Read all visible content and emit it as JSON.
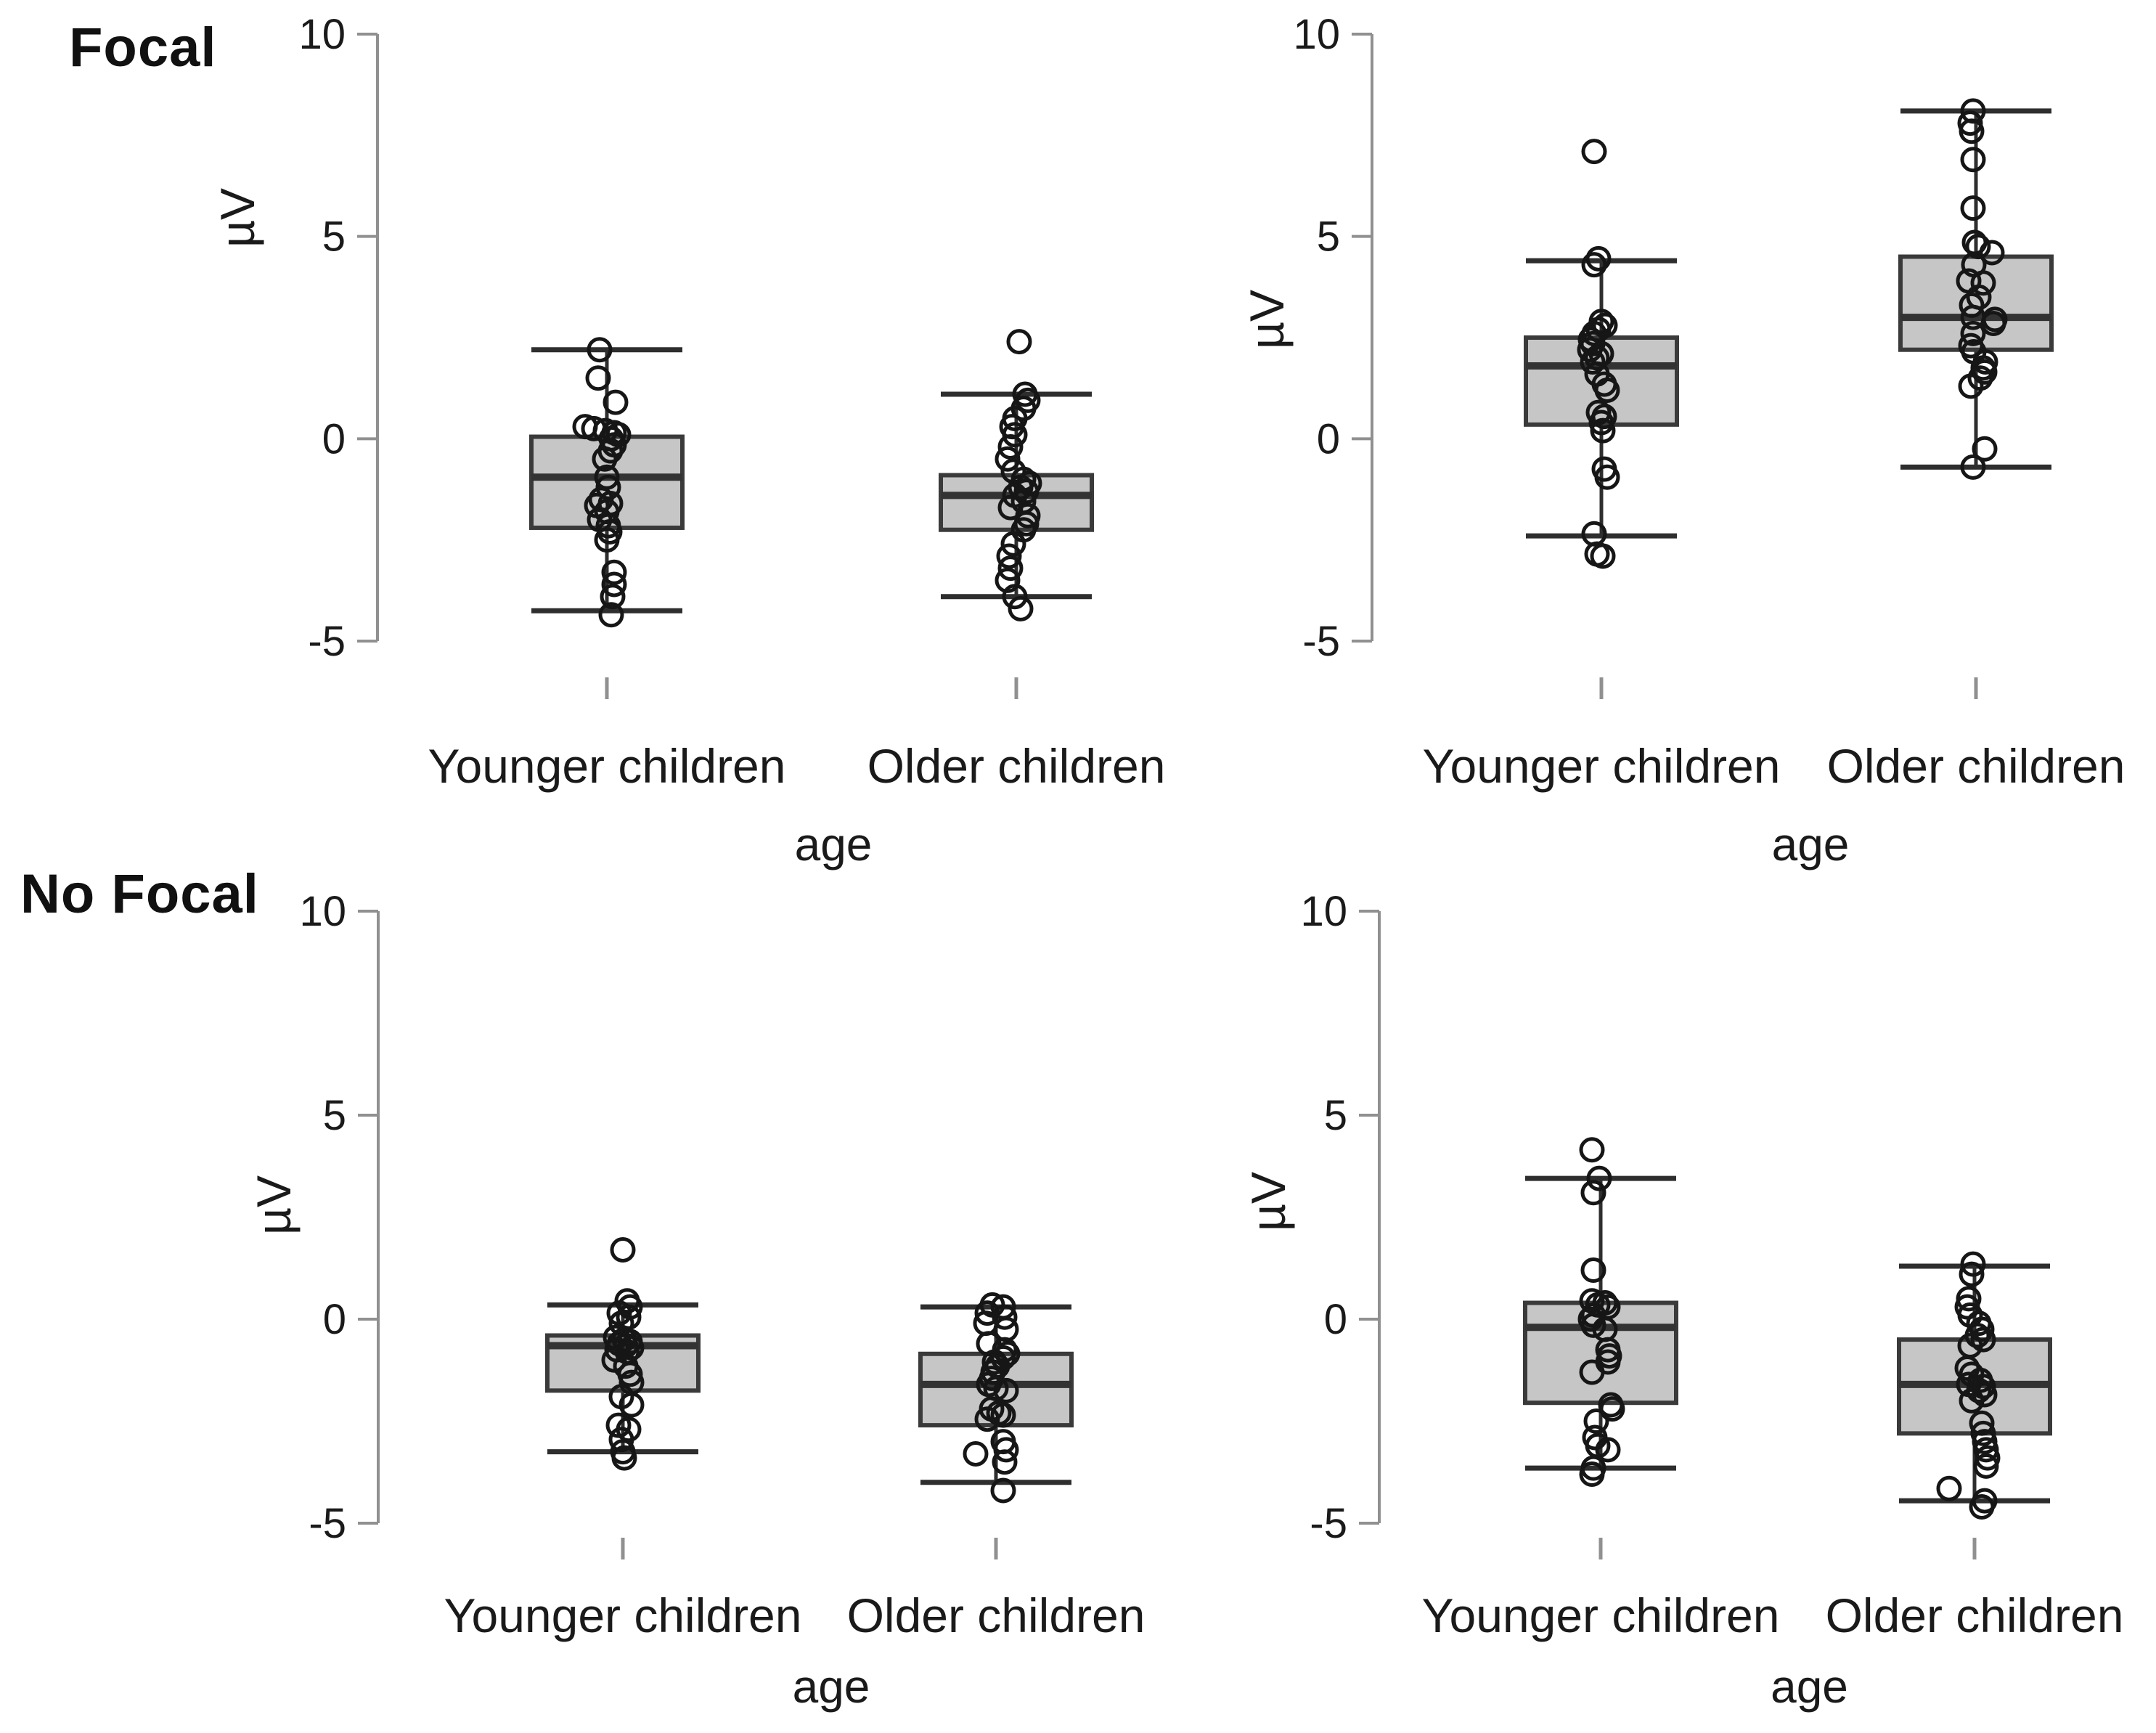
{
  "figure": {
    "row_titles": [
      "Focal",
      "No Focal"
    ],
    "y_axis_label": "µV",
    "x_axis_label": "age",
    "y_tick_labels": [
      "10",
      "5",
      "0",
      "-5"
    ],
    "categories": [
      "Younger children",
      "Older children"
    ],
    "colors": {
      "background": "#ffffff",
      "box_fill": "#c6c6c6",
      "box_border": "#3a3a3a",
      "median": "#333333",
      "whisker": "#2e2e2e",
      "point_stroke": "#161616",
      "axis": "#909090",
      "text": "#1a1a1a"
    }
  },
  "chart_data": [
    {
      "id": "focal-left",
      "type": "boxplot",
      "condition": "Focal",
      "ylabel": "µV",
      "xlabel": "age",
      "yticks": [
        10,
        5,
        0,
        -5
      ],
      "ylim": [
        -5,
        10
      ],
      "categories": [
        "Younger children",
        "Older children"
      ],
      "groups": [
        {
          "category": "Younger children",
          "stats": {
            "whisker_low": -4.25,
            "q1": -2.2,
            "median": -0.95,
            "q3": 0.05,
            "whisker_high": 2.2
          },
          "points": [
            [
              2.2,
              -10
            ],
            [
              1.5,
              -12
            ],
            [
              0.9,
              12
            ],
            [
              0.3,
              -30
            ],
            [
              0.25,
              -18
            ],
            [
              0.2,
              -2
            ],
            [
              0.15,
              10
            ],
            [
              0.1,
              16
            ],
            [
              0.0,
              6
            ],
            [
              -0.15,
              10
            ],
            [
              -0.3,
              5
            ],
            [
              -0.5,
              -3
            ],
            [
              -0.95,
              0
            ],
            [
              -1.2,
              2
            ],
            [
              -1.5,
              -8
            ],
            [
              -1.6,
              5
            ],
            [
              -1.65,
              -14
            ],
            [
              -1.8,
              0
            ],
            [
              -2.0,
              -10
            ],
            [
              -2.15,
              2
            ],
            [
              -2.3,
              4
            ],
            [
              -2.5,
              0
            ],
            [
              -3.3,
              10
            ],
            [
              -3.6,
              10
            ],
            [
              -3.9,
              8
            ],
            [
              -4.35,
              6
            ]
          ]
        },
        {
          "category": "Older children",
          "stats": {
            "whisker_low": -3.9,
            "q1": -2.25,
            "median": -1.4,
            "q3": -0.9,
            "whisker_high": 1.1
          },
          "points": [
            [
              2.4,
              4
            ],
            [
              1.1,
              12
            ],
            [
              0.95,
              16
            ],
            [
              0.75,
              10
            ],
            [
              0.5,
              -2
            ],
            [
              0.3,
              -6
            ],
            [
              0.1,
              -2
            ],
            [
              -0.2,
              -8
            ],
            [
              -0.5,
              -12
            ],
            [
              -0.8,
              -4
            ],
            [
              -1.0,
              10
            ],
            [
              -1.1,
              18
            ],
            [
              -1.2,
              6
            ],
            [
              -1.3,
              14
            ],
            [
              -1.4,
              -2
            ],
            [
              -1.55,
              10
            ],
            [
              -1.7,
              -8
            ],
            [
              -1.9,
              16
            ],
            [
              -2.1,
              14
            ],
            [
              -2.25,
              10
            ],
            [
              -2.6,
              -4
            ],
            [
              -2.9,
              -10
            ],
            [
              -3.2,
              -8
            ],
            [
              -3.5,
              -12
            ],
            [
              -3.9,
              -2
            ],
            [
              -4.2,
              6
            ]
          ]
        }
      ]
    },
    {
      "id": "focal-right",
      "type": "boxplot",
      "condition": "Focal",
      "ylabel": "µV",
      "xlabel": "age",
      "yticks": [
        10,
        5,
        0,
        -5
      ],
      "ylim": [
        -5,
        10
      ],
      "categories": [
        "Younger children",
        "Older children"
      ],
      "groups": [
        {
          "category": "Younger children",
          "stats": {
            "whisker_low": -2.4,
            "q1": 0.35,
            "median": 1.8,
            "q3": 2.5,
            "whisker_high": 4.4
          },
          "points": [
            [
              7.1,
              -10
            ],
            [
              4.45,
              -4
            ],
            [
              4.3,
              -10
            ],
            [
              2.9,
              0
            ],
            [
              2.8,
              5
            ],
            [
              2.7,
              -4
            ],
            [
              2.6,
              -10
            ],
            [
              2.45,
              -15
            ],
            [
              2.35,
              -12
            ],
            [
              2.2,
              -16
            ],
            [
              2.1,
              0
            ],
            [
              2.0,
              -6
            ],
            [
              1.9,
              -12
            ],
            [
              1.6,
              -6
            ],
            [
              1.35,
              4
            ],
            [
              1.2,
              8
            ],
            [
              0.65,
              -4
            ],
            [
              0.55,
              4
            ],
            [
              0.4,
              0
            ],
            [
              0.2,
              2
            ],
            [
              -0.75,
              4
            ],
            [
              -0.95,
              8
            ],
            [
              -2.35,
              -10
            ],
            [
              -2.85,
              -6
            ],
            [
              -2.9,
              2
            ]
          ]
        },
        {
          "category": "Older children",
          "stats": {
            "whisker_low": -0.7,
            "q1": 2.2,
            "median": 3.0,
            "q3": 4.5,
            "whisker_high": 8.1
          },
          "points": [
            [
              8.1,
              -4
            ],
            [
              7.8,
              -8
            ],
            [
              7.6,
              -6
            ],
            [
              6.9,
              -4
            ],
            [
              5.7,
              -4
            ],
            [
              4.85,
              -2
            ],
            [
              4.75,
              3
            ],
            [
              4.6,
              22
            ],
            [
              4.3,
              -3
            ],
            [
              3.9,
              -10
            ],
            [
              3.85,
              10
            ],
            [
              3.5,
              4
            ],
            [
              3.3,
              -6
            ],
            [
              3.0,
              -4
            ],
            [
              2.95,
              26
            ],
            [
              2.85,
              24
            ],
            [
              2.6,
              -4
            ],
            [
              2.3,
              -7
            ],
            [
              2.15,
              -3
            ],
            [
              1.9,
              13
            ],
            [
              1.75,
              10
            ],
            [
              1.65,
              12
            ],
            [
              1.5,
              6
            ],
            [
              1.3,
              -7
            ],
            [
              -0.25,
              12
            ],
            [
              -0.7,
              -4
            ]
          ]
        }
      ]
    },
    {
      "id": "nofocal-left",
      "type": "boxplot",
      "condition": "No Focal",
      "ylabel": "µV",
      "xlabel": "age",
      "yticks": [
        10,
        5,
        0,
        -5
      ],
      "ylim": [
        -5,
        10
      ],
      "categories": [
        "Younger children",
        "Older children"
      ],
      "groups": [
        {
          "category": "Younger children",
          "stats": {
            "whisker_low": -3.25,
            "q1": -1.75,
            "median": -0.65,
            "q3": -0.4,
            "whisker_high": 0.35
          },
          "points": [
            [
              1.7,
              0
            ],
            [
              0.45,
              6
            ],
            [
              0.3,
              10
            ],
            [
              0.15,
              -5
            ],
            [
              0.05,
              8
            ],
            [
              -0.1,
              -2
            ],
            [
              -0.45,
              -10
            ],
            [
              -0.5,
              2
            ],
            [
              -0.55,
              10
            ],
            [
              -0.6,
              -5
            ],
            [
              -0.65,
              4
            ],
            [
              -0.7,
              12
            ],
            [
              -0.75,
              -8
            ],
            [
              -0.8,
              6
            ],
            [
              -1.0,
              -12
            ],
            [
              -1.15,
              4
            ],
            [
              -1.35,
              10
            ],
            [
              -1.55,
              12
            ],
            [
              -1.9,
              -2
            ],
            [
              -2.1,
              12
            ],
            [
              -2.6,
              -6
            ],
            [
              -2.7,
              8
            ],
            [
              -2.95,
              -2
            ],
            [
              -3.25,
              0
            ],
            [
              -3.4,
              2
            ]
          ]
        },
        {
          "category": "Older children",
          "stats": {
            "whisker_low": -4.0,
            "q1": -2.6,
            "median": -1.6,
            "q3": -0.85,
            "whisker_high": 0.3
          },
          "points": [
            [
              0.35,
              -5
            ],
            [
              0.3,
              10
            ],
            [
              0.15,
              -12
            ],
            [
              0.05,
              12
            ],
            [
              -0.1,
              -14
            ],
            [
              -0.25,
              14
            ],
            [
              -0.6,
              -10
            ],
            [
              -0.75,
              12
            ],
            [
              -0.85,
              16
            ],
            [
              -0.95,
              10
            ],
            [
              -1.05,
              -2
            ],
            [
              -1.15,
              2
            ],
            [
              -1.3,
              -4
            ],
            [
              -1.45,
              -6
            ],
            [
              -1.6,
              -10
            ],
            [
              -1.7,
              0
            ],
            [
              -1.75,
              14
            ],
            [
              -2.2,
              -6
            ],
            [
              -2.3,
              4
            ],
            [
              -2.35,
              10
            ],
            [
              -2.45,
              -12
            ],
            [
              -3.0,
              10
            ],
            [
              -3.2,
              14
            ],
            [
              -3.3,
              -28
            ],
            [
              -3.5,
              12
            ],
            [
              -4.2,
              10
            ]
          ]
        }
      ]
    },
    {
      "id": "nofocal-right",
      "type": "boxplot",
      "condition": "No Focal",
      "ylabel": "µV",
      "xlabel": "age",
      "yticks": [
        10,
        5,
        0,
        -5
      ],
      "ylim": [
        -5,
        10
      ],
      "categories": [
        "Younger children",
        "Older children"
      ],
      "groups": [
        {
          "category": "Younger children",
          "stats": {
            "whisker_low": -3.65,
            "q1": -2.05,
            "median": -0.2,
            "q3": 0.4,
            "whisker_high": 3.45
          },
          "points": [
            [
              4.15,
              -12
            ],
            [
              3.45,
              -2
            ],
            [
              3.1,
              -10
            ],
            [
              1.2,
              -10
            ],
            [
              0.45,
              -12
            ],
            [
              0.4,
              6
            ],
            [
              0.35,
              -4
            ],
            [
              0.3,
              10
            ],
            [
              0.1,
              -10
            ],
            [
              0.0,
              -14
            ],
            [
              -0.15,
              -10
            ],
            [
              -0.25,
              6
            ],
            [
              -0.75,
              10
            ],
            [
              -0.9,
              12
            ],
            [
              -1.05,
              10
            ],
            [
              -1.3,
              -12
            ],
            [
              -2.1,
              14
            ],
            [
              -2.2,
              16
            ],
            [
              -2.5,
              -6
            ],
            [
              -2.9,
              -8
            ],
            [
              -3.1,
              -4
            ],
            [
              -3.2,
              10
            ],
            [
              -3.65,
              -10
            ],
            [
              -3.8,
              -12
            ]
          ]
        },
        {
          "category": "Older children",
          "stats": {
            "whisker_low": -4.45,
            "q1": -2.8,
            "median": -1.6,
            "q3": -0.5,
            "whisker_high": 1.3
          },
          "points": [
            [
              1.35,
              -2
            ],
            [
              1.1,
              -4
            ],
            [
              0.5,
              -8
            ],
            [
              0.3,
              -10
            ],
            [
              0.1,
              -6
            ],
            [
              -0.1,
              6
            ],
            [
              -0.25,
              10
            ],
            [
              -0.4,
              4
            ],
            [
              -0.5,
              12
            ],
            [
              -0.65,
              -6
            ],
            [
              -1.2,
              -10
            ],
            [
              -1.35,
              -4
            ],
            [
              -1.5,
              8
            ],
            [
              -1.6,
              -8
            ],
            [
              -1.65,
              12
            ],
            [
              -1.75,
              6
            ],
            [
              -1.85,
              14
            ],
            [
              -2.0,
              -4
            ],
            [
              -2.55,
              10
            ],
            [
              -2.8,
              12
            ],
            [
              -3.0,
              14
            ],
            [
              -3.2,
              16
            ],
            [
              -3.4,
              18
            ],
            [
              -3.6,
              16
            ],
            [
              -4.15,
              -35
            ],
            [
              -4.45,
              14
            ],
            [
              -4.6,
              10
            ]
          ]
        }
      ]
    }
  ]
}
